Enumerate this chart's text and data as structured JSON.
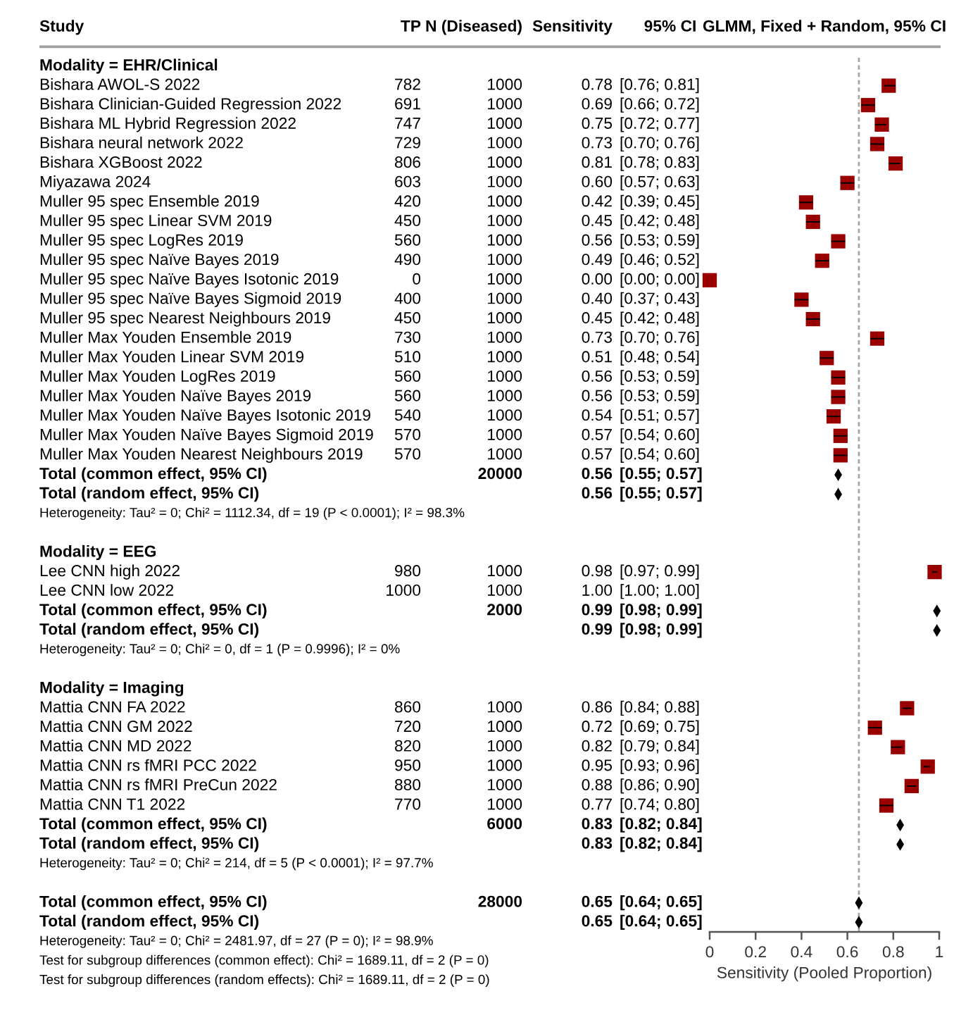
{
  "chart_data": [
    {
      "type": "other",
      "categories": [
        "Study",
        "TP",
        "N (Diseased)",
        "Sensitivity",
        "95% CI"
      ],
      "cell_labels": [
        [
          "Modality = EHR/Clinical",
          null,
          null,
          null,
          null
        ],
        [
          "Bishara AWOL-S 2022",
          "782",
          "1000",
          "0.78",
          "[0.76; 0.81]"
        ],
        [
          "Bishara Clinician-Guided Regression 2022",
          "691",
          "1000",
          "0.69",
          "[0.66; 0.72]"
        ],
        [
          "Bishara ML Hybrid Regression 2022",
          "747",
          "1000",
          "0.75",
          "[0.72; 0.77]"
        ],
        [
          "Bishara neural network 2022",
          "729",
          "1000",
          "0.73",
          "[0.70; 0.76]"
        ],
        [
          "Bishara XGBoost 2022",
          "806",
          "1000",
          "0.81",
          "[0.78; 0.83]"
        ],
        [
          "Miyazawa 2024",
          "603",
          "1000",
          "0.60",
          "[0.57; 0.63]"
        ],
        [
          "Muller 95 spec Ensemble 2019",
          "420",
          "1000",
          "0.42",
          "[0.39; 0.45]"
        ],
        [
          "Muller 95 spec Linear SVM 2019",
          "450",
          "1000",
          "0.45",
          "[0.42; 0.48]"
        ],
        [
          "Muller 95 spec LogRes 2019",
          "560",
          "1000",
          "0.56",
          "[0.53; 0.59]"
        ],
        [
          "Muller 95 spec Naïve Bayes 2019",
          "490",
          "1000",
          "0.49",
          "[0.46; 0.52]"
        ],
        [
          "Muller 95 spec Naïve Bayes Isotonic 2019",
          "0",
          "1000",
          "0.00",
          "[0.00; 0.00]"
        ],
        [
          "Muller 95 spec Naïve Bayes Sigmoid 2019",
          "400",
          "1000",
          "0.40",
          "[0.37; 0.43]"
        ],
        [
          "Muller 95 spec Nearest Neighbours 2019",
          "450",
          "1000",
          "0.45",
          "[0.42; 0.48]"
        ],
        [
          "Muller Max Youden Ensemble 2019",
          "730",
          "1000",
          "0.73",
          "[0.70; 0.76]"
        ],
        [
          "Muller Max Youden Linear SVM 2019",
          "510",
          "1000",
          "0.51",
          "[0.48; 0.54]"
        ],
        [
          "Muller Max Youden LogRes 2019",
          "560",
          "1000",
          "0.56",
          "[0.53; 0.59]"
        ],
        [
          "Muller Max Youden Naïve Bayes 2019",
          "560",
          "1000",
          "0.56",
          "[0.53; 0.59]"
        ],
        [
          "Muller Max Youden Naïve Bayes Isotonic 2019",
          "540",
          "1000",
          "0.54",
          "[0.51; 0.57]"
        ],
        [
          "Muller Max Youden Naïve Bayes Sigmoid 2019",
          "570",
          "1000",
          "0.57",
          "[0.54; 0.60]"
        ],
        [
          "Muller Max Youden Nearest Neighbours 2019",
          "570",
          "1000",
          "0.57",
          "[0.54; 0.60]"
        ],
        [
          "Total (common effect, 95% CI)",
          null,
          "20000",
          "0.56",
          "[0.55; 0.57]"
        ],
        [
          "Total (random effect, 95% CI)",
          null,
          null,
          "0.56",
          "[0.55; 0.57]"
        ],
        [
          "Heterogeneity: Tau² = 0; Chi² = 1112.34, df = 19 (P < 0.0001); I² = 98.3%",
          null,
          null,
          null,
          null
        ],
        [
          null,
          null,
          null,
          null,
          null
        ],
        [
          "Modality = EEG",
          null,
          null,
          null,
          null
        ],
        [
          "Lee CNN high 2022",
          "980",
          "1000",
          "0.98",
          "[0.97; 0.99]"
        ],
        [
          "Lee CNN low 2022",
          "1000",
          "1000",
          "1.00",
          "[1.00; 1.00]"
        ],
        [
          "Total (common effect, 95% CI)",
          null,
          "2000",
          "0.99",
          "[0.98; 0.99]"
        ],
        [
          "Total (random effect, 95% CI)",
          null,
          null,
          "0.99",
          "[0.98; 0.99]"
        ],
        [
          "Heterogeneity: Tau² = 0; Chi² = 0, df = 1 (P = 0.9996); I² = 0%",
          null,
          null,
          null,
          null
        ],
        [
          null,
          null,
          null,
          null,
          null
        ],
        [
          "Modality = Imaging",
          null,
          null,
          null,
          null
        ],
        [
          "Mattia CNN FA 2022",
          "860",
          "1000",
          "0.86",
          "[0.84; 0.88]"
        ],
        [
          "Mattia CNN GM 2022",
          "720",
          "1000",
          "0.72",
          "[0.69; 0.75]"
        ],
        [
          "Mattia CNN MD 2022",
          "820",
          "1000",
          "0.82",
          "[0.79; 0.84]"
        ],
        [
          "Mattia CNN rs fMRI PCC 2022",
          "950",
          "1000",
          "0.95",
          "[0.93; 0.96]"
        ],
        [
          "Mattia CNN rs fMRI PreCun 2022",
          "880",
          "1000",
          "0.88",
          "[0.86; 0.90]"
        ],
        [
          "Mattia CNN T1 2022",
          "770",
          "1000",
          "0.77",
          "[0.74; 0.80]"
        ],
        [
          "Total (common effect, 95% CI)",
          null,
          "6000",
          "0.83",
          "[0.82; 0.84]"
        ],
        [
          "Total (random effect, 95% CI)",
          null,
          null,
          "0.83",
          "[0.82; 0.84]"
        ],
        [
          "Heterogeneity: Tau² = 0; Chi² = 214, df = 5 (P < 0.0001); I² = 97.7%",
          null,
          null,
          null,
          null
        ],
        [
          null,
          null,
          null,
          null,
          null
        ],
        [
          "Total (common effect, 95% CI)",
          null,
          "28000",
          "0.65",
          "[0.64; 0.65]"
        ],
        [
          "Total (random effect, 95% CI)",
          null,
          null,
          "0.65",
          "[0.64; 0.65]"
        ],
        [
          "Heterogeneity: Tau² = 0; Chi² = 2481.97, df = 27 (P = 0); I² = 98.9%",
          null,
          null,
          null,
          null
        ],
        [
          "Test for subgroup differences (common effect): Chi² = 1689.11, df = 2 (P = 0)",
          null,
          null,
          null,
          null
        ],
        [
          "Test for subgroup differences (random effects): Chi² = 1689.11, df = 2 (P = 0)",
          null,
          null,
          null,
          null
        ]
      ]
    },
    {
      "type": "scatter",
      "orientation": "horizontal",
      "title": "GLMM, Fixed + Random, 95% CI",
      "xlabel": "Sensitivity (Pooled Proportion)",
      "categories": [
        null,
        null,
        null,
        null,
        null,
        null,
        null,
        null,
        null,
        null,
        null,
        null,
        null,
        null,
        null,
        null,
        null,
        null,
        null,
        null,
        null,
        null,
        null,
        null,
        null,
        null,
        null,
        null,
        null,
        null,
        null,
        null,
        null,
        null,
        null,
        null,
        null,
        null,
        null,
        null,
        null,
        null,
        null,
        null,
        null
      ],
      "series": [
        {
          "type": "scatter",
          "marker": "square",
          "color": "#990000",
          "values": [
            null,
            0.78,
            0.69,
            0.75,
            0.73,
            0.81,
            0.6,
            0.42,
            0.45,
            0.56,
            0.49,
            0.0,
            0.4,
            0.45,
            0.73,
            0.51,
            0.56,
            0.56,
            0.54,
            0.57,
            0.57,
            null,
            null,
            null,
            null,
            null,
            0.98,
            null,
            null,
            null,
            null,
            null,
            null,
            0.86,
            0.72,
            0.82,
            0.95,
            0.88,
            0.77,
            null,
            null,
            null,
            null,
            null,
            null
          ],
          "errors": [
            null,
            [
              0.76,
              0.81
            ],
            [
              0.66,
              0.72
            ],
            [
              0.72,
              0.77
            ],
            [
              0.7,
              0.76
            ],
            [
              0.78,
              0.83
            ],
            [
              0.57,
              0.63
            ],
            [
              0.39,
              0.45
            ],
            [
              0.42,
              0.48
            ],
            [
              0.53,
              0.59
            ],
            [
              0.46,
              0.52
            ],
            [
              0.0,
              0.0
            ],
            [
              0.37,
              0.43
            ],
            [
              0.42,
              0.48
            ],
            [
              0.7,
              0.76
            ],
            [
              0.48,
              0.54
            ],
            [
              0.53,
              0.59
            ],
            [
              0.53,
              0.59
            ],
            [
              0.51,
              0.57
            ],
            [
              0.54,
              0.6
            ],
            [
              0.54,
              0.6
            ],
            null,
            null,
            null,
            null,
            null,
            [
              0.97,
              0.99
            ],
            null,
            null,
            null,
            null,
            null,
            null,
            [
              0.84,
              0.88
            ],
            [
              0.69,
              0.75
            ],
            [
              0.79,
              0.84
            ],
            [
              0.93,
              0.96
            ],
            [
              0.86,
              0.9
            ],
            [
              0.74,
              0.8
            ],
            null,
            null,
            null,
            null,
            null,
            null
          ]
        },
        {
          "type": "scatter",
          "marker": "diamond",
          "color": "#000000",
          "values": [
            null,
            null,
            null,
            null,
            null,
            null,
            null,
            null,
            null,
            null,
            null,
            null,
            null,
            null,
            null,
            null,
            null,
            null,
            null,
            null,
            null,
            0.56,
            0.56,
            null,
            null,
            null,
            null,
            null,
            0.99,
            0.99,
            null,
            null,
            null,
            null,
            null,
            null,
            null,
            null,
            null,
            0.83,
            0.83,
            null,
            null,
            0.65,
            0.65
          ],
          "errors": [
            null,
            null,
            null,
            null,
            null,
            null,
            null,
            null,
            null,
            null,
            null,
            null,
            null,
            null,
            null,
            null,
            null,
            null,
            null,
            null,
            null,
            [
              0.55,
              0.57
            ],
            [
              0.55,
              0.57
            ],
            null,
            null,
            null,
            null,
            null,
            [
              0.98,
              0.99
            ],
            [
              0.98,
              0.99
            ],
            null,
            null,
            null,
            null,
            null,
            null,
            null,
            null,
            null,
            [
              0.82,
              0.84
            ],
            [
              0.82,
              0.84
            ],
            null,
            null,
            [
              0.64,
              0.65
            ],
            [
              0.64,
              0.65
            ]
          ]
        }
      ],
      "xlim": [
        0,
        1
      ],
      "xticks": [
        0,
        0.2,
        0.4,
        0.6,
        0.8,
        1
      ],
      "ref_lines": [
        {
          "axis": "x",
          "value": 0.65,
          "color": "#a6a6a6",
          "line_style": "dashed"
        }
      ],
      "tick_labels": "x"
    }
  ]
}
